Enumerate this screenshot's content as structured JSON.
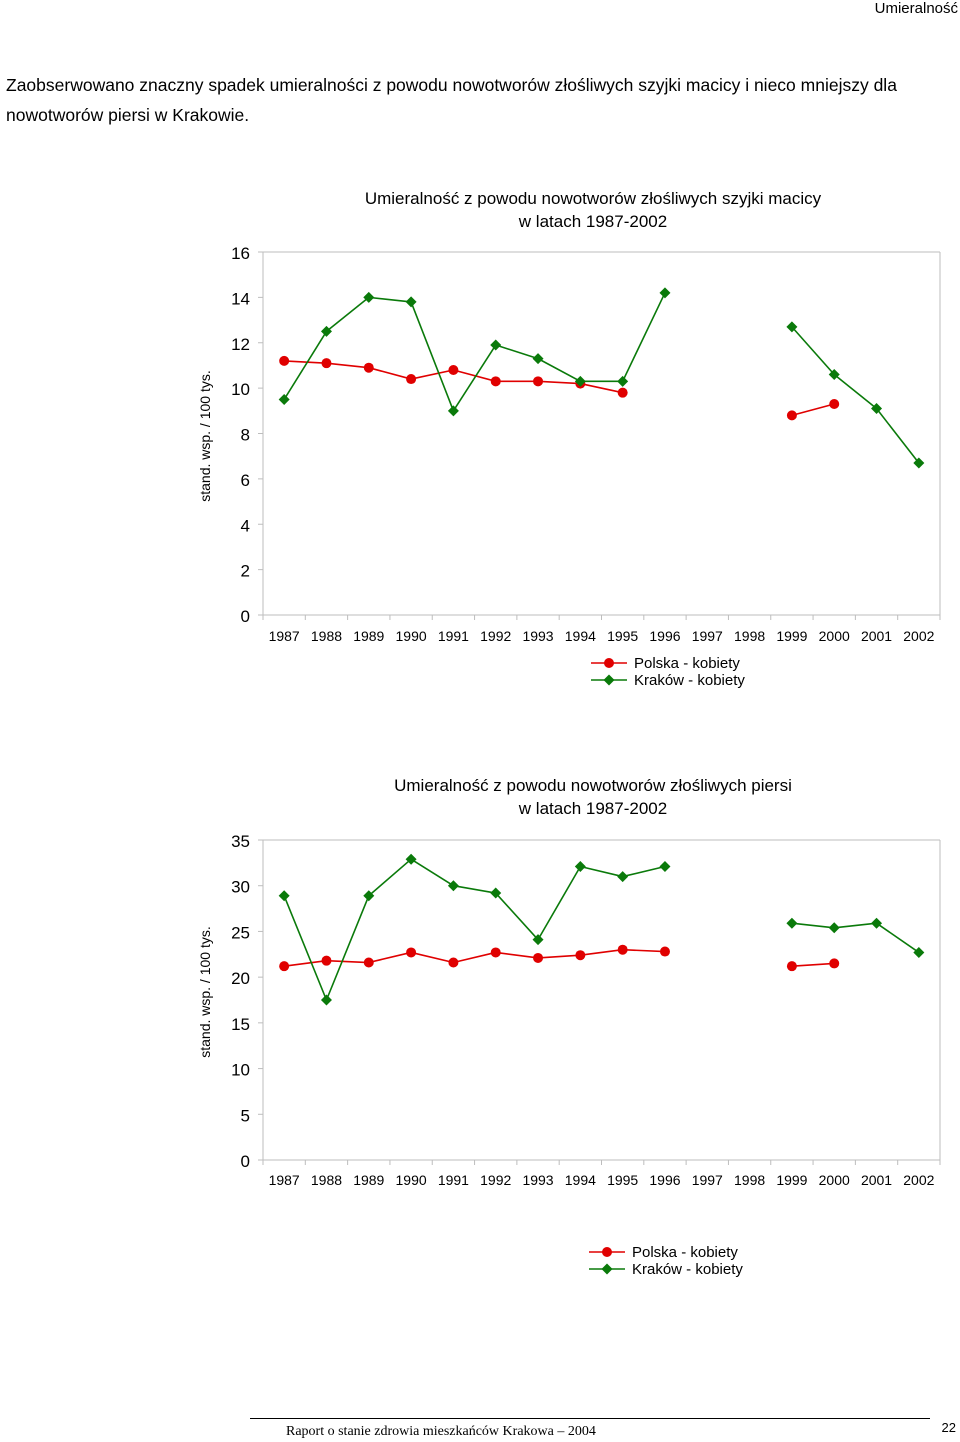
{
  "header": {
    "title": "Umieralność"
  },
  "intro": "Zaobserwowano znaczny spadek umieralności z powodu nowotworów złośliwych szyjki macicy i nieco mniejszy dla nowotworów piersi w Krakowie.",
  "footer": {
    "text": "Raport o stanie zdrowia mieszkańców Krakowa – 2004",
    "page": "22"
  },
  "colors": {
    "polska": "#e00000",
    "krakow": "#0a7a0a"
  },
  "chart_data": [
    {
      "type": "line",
      "title": "Umieralność z powodu nowotworów złośliwych szyjki macicy",
      "subtitle": "w latach 1987-2002",
      "ylabel": "stand. wsp. / 100 tys.",
      "xlabel": "",
      "ylim": [
        0,
        16
      ],
      "yticks": [
        "0",
        "2",
        "4",
        "6",
        "8",
        "10",
        "12",
        "14",
        "16"
      ],
      "categories": [
        "1987",
        "1988",
        "1989",
        "1990",
        "1991",
        "1992",
        "1993",
        "1994",
        "1995",
        "1996",
        "1997",
        "1998",
        "1999",
        "2000",
        "2001",
        "2002"
      ],
      "series": [
        {
          "name": "Polska - kobiety",
          "marker": "circle",
          "values": [
            11.2,
            11.1,
            10.9,
            10.4,
            10.8,
            10.3,
            10.3,
            10.2,
            9.8,
            null,
            null,
            null,
            8.8,
            9.3,
            null,
            null
          ]
        },
        {
          "name": "Kraków - kobiety",
          "marker": "diamond",
          "values": [
            9.5,
            12.5,
            14.0,
            13.8,
            9.0,
            11.9,
            11.3,
            10.3,
            10.3,
            14.2,
            null,
            null,
            12.7,
            10.6,
            9.1,
            6.7
          ]
        }
      ],
      "legend": "bottom-right"
    },
    {
      "type": "line",
      "title": "Umieralność z powodu nowotworów złośliwych piersi",
      "subtitle": "w latach 1987-2002",
      "ylabel": "stand. wsp. / 100 tys.",
      "xlabel": "",
      "ylim": [
        0,
        35
      ],
      "yticks": [
        "0",
        "5",
        "10",
        "15",
        "20",
        "25",
        "30",
        "35"
      ],
      "categories": [
        "1987",
        "1988",
        "1989",
        "1990",
        "1991",
        "1992",
        "1993",
        "1994",
        "1995",
        "1996",
        "1997",
        "1998",
        "1999",
        "2000",
        "2001",
        "2002"
      ],
      "series": [
        {
          "name": "Polska - kobiety",
          "marker": "circle",
          "values": [
            21.2,
            21.8,
            21.6,
            22.7,
            21.6,
            22.7,
            22.1,
            22.4,
            23.0,
            22.8,
            null,
            null,
            21.2,
            21.5,
            null,
            null
          ]
        },
        {
          "name": "Kraków - kobiety",
          "marker": "diamond",
          "values": [
            28.9,
            17.5,
            28.9,
            32.9,
            30.0,
            29.2,
            24.1,
            32.1,
            31.0,
            32.1,
            null,
            null,
            25.9,
            25.4,
            25.9,
            22.7
          ]
        }
      ],
      "legend": "bottom-right"
    }
  ]
}
